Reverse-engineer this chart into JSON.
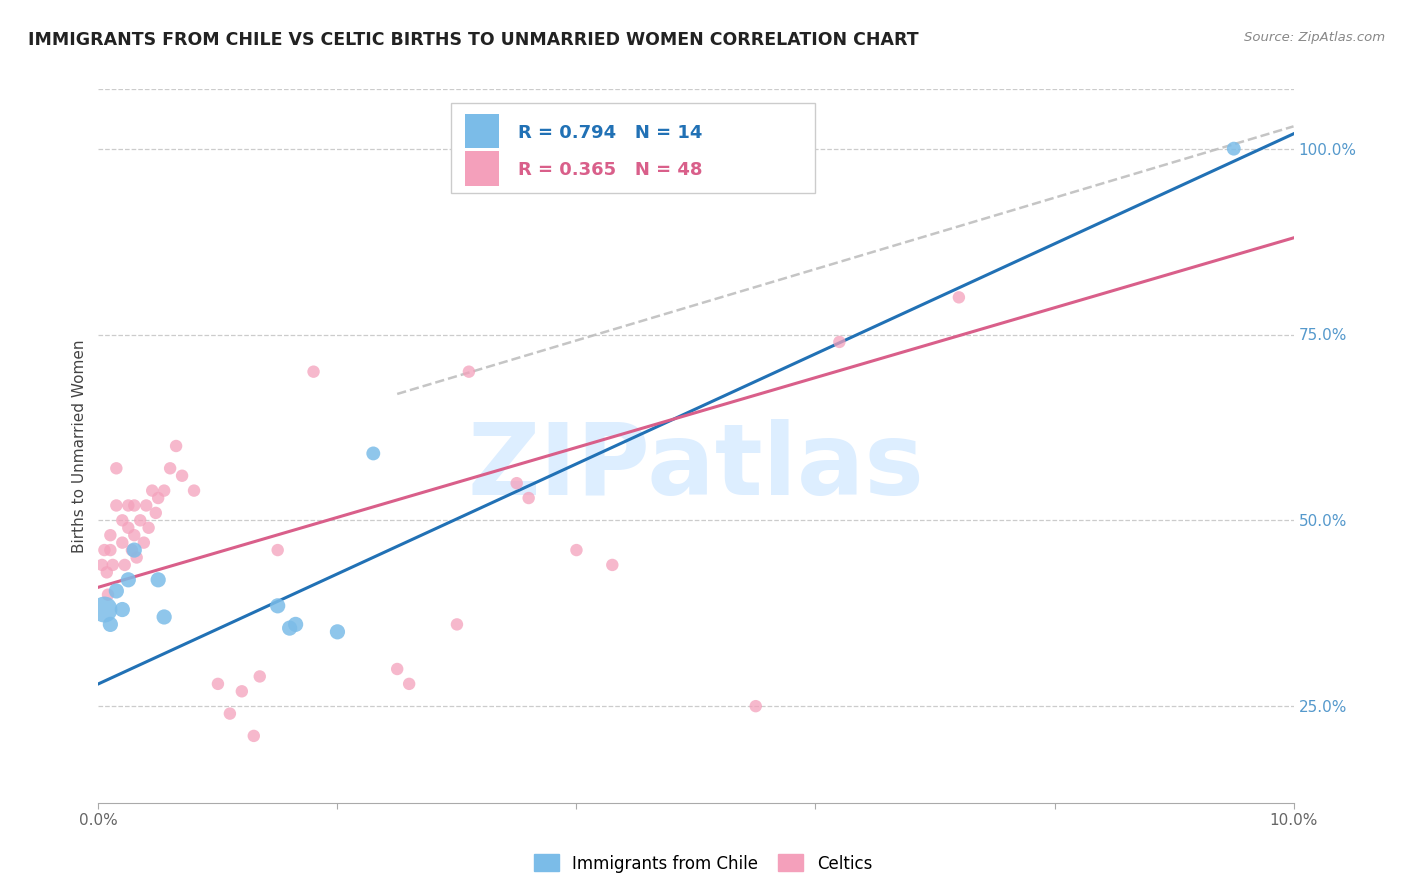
{
  "title": "IMMIGRANTS FROM CHILE VS CELTIC BIRTHS TO UNMARRIED WOMEN CORRELATION CHART",
  "source": "Source: ZipAtlas.com",
  "ylabel": "Births to Unmarried Women",
  "watermark": "ZIPatlas",
  "xlim": [
    0.0,
    10.0
  ],
  "ylim": [
    12.0,
    108.0
  ],
  "xtick_vals": [
    0.0,
    2.0,
    4.0,
    6.0,
    8.0,
    10.0
  ],
  "xtick_labels": [
    "0.0%",
    "",
    "",
    "",
    "",
    "10.0%"
  ],
  "yticks_right": [
    25.0,
    50.0,
    75.0,
    100.0
  ],
  "ytick_labels_right": [
    "25.0%",
    "50.0%",
    "75.0%",
    "100.0%"
  ],
  "legend_r1": "R = 0.794",
  "legend_n1": "N = 14",
  "legend_r2": "R = 0.365",
  "legend_n2": "N = 48",
  "legend_label1": "Immigrants from Chile",
  "legend_label2": "Celtics",
  "color_blue": "#7bbce8",
  "color_pink": "#f4a0bb",
  "color_line_blue": "#2171b5",
  "color_line_pink": "#d95f8a",
  "color_dashed": "#bbbbbb",
  "color_axis_right": "#5599cc",
  "color_watermark": "#ddeeff",
  "blue_line_x": [
    0.0,
    10.0
  ],
  "blue_line_y": [
    28.0,
    102.0
  ],
  "pink_line_x": [
    0.0,
    10.0
  ],
  "pink_line_y": [
    41.0,
    88.0
  ],
  "dash_line_x": [
    2.5,
    10.0
  ],
  "dash_line_y": [
    67.0,
    103.0
  ],
  "blue_x": [
    0.05,
    0.1,
    0.15,
    0.2,
    0.25,
    0.3,
    0.5,
    0.55,
    1.5,
    1.6,
    1.65,
    2.0,
    2.3,
    9.5
  ],
  "blue_y": [
    38.0,
    36.0,
    40.5,
    38.0,
    42.0,
    46.0,
    42.0,
    37.0,
    38.5,
    35.5,
    36.0,
    35.0,
    59.0,
    100.0
  ],
  "blue_sizes": [
    350,
    120,
    120,
    120,
    120,
    120,
    120,
    120,
    120,
    120,
    120,
    120,
    100,
    100
  ],
  "pink_x": [
    0.03,
    0.05,
    0.07,
    0.08,
    0.1,
    0.1,
    0.12,
    0.15,
    0.15,
    0.2,
    0.2,
    0.22,
    0.25,
    0.25,
    0.28,
    0.3,
    0.3,
    0.32,
    0.35,
    0.38,
    0.4,
    0.42,
    0.45,
    0.48,
    0.5,
    0.55,
    0.6,
    0.65,
    0.7,
    0.8,
    1.0,
    1.1,
    1.2,
    1.3,
    1.35,
    1.5,
    1.8,
    2.5,
    2.6,
    3.0,
    3.1,
    3.5,
    3.6,
    4.0,
    4.3,
    5.5,
    6.2,
    7.2
  ],
  "pink_y": [
    44.0,
    46.0,
    43.0,
    40.0,
    48.0,
    46.0,
    44.0,
    57.0,
    52.0,
    50.0,
    47.0,
    44.0,
    52.0,
    49.0,
    46.0,
    52.0,
    48.0,
    45.0,
    50.0,
    47.0,
    52.0,
    49.0,
    54.0,
    51.0,
    53.0,
    54.0,
    57.0,
    60.0,
    56.0,
    54.0,
    28.0,
    24.0,
    27.0,
    21.0,
    29.0,
    46.0,
    70.0,
    30.0,
    28.0,
    36.0,
    70.0,
    55.0,
    53.0,
    46.0,
    44.0,
    25.0,
    74.0,
    80.0
  ],
  "pink_sizes": [
    80,
    80,
    80,
    80,
    80,
    80,
    80,
    80,
    80,
    80,
    80,
    80,
    80,
    80,
    80,
    80,
    80,
    80,
    80,
    80,
    80,
    80,
    80,
    80,
    80,
    80,
    80,
    80,
    80,
    80,
    80,
    80,
    80,
    80,
    80,
    80,
    80,
    80,
    80,
    80,
    80,
    80,
    80,
    80,
    80,
    80,
    80,
    80
  ]
}
